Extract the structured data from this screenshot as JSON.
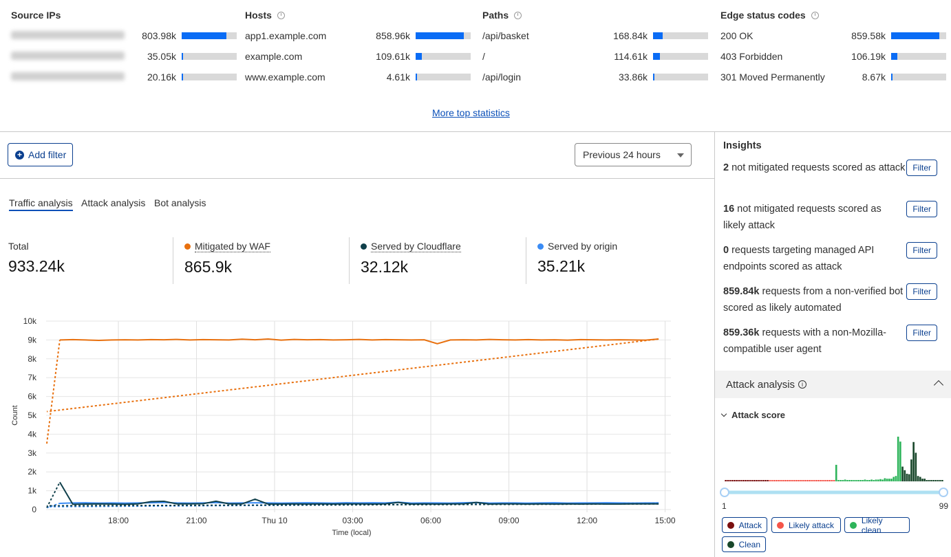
{
  "top_stats": {
    "more_link": "More top statistics",
    "columns": [
      {
        "title": "Source IPs",
        "has_icon": false,
        "rows": [
          {
            "label": "",
            "value": "803.98k",
            "pct": 81
          },
          {
            "label": "",
            "value": "35.05k",
            "pct": 3
          },
          {
            "label": "",
            "value": "20.16k",
            "pct": 2
          }
        ]
      },
      {
        "title": "Hosts",
        "has_icon": true,
        "rows": [
          {
            "label": "app1.example.com",
            "value": "858.96k",
            "pct": 88
          },
          {
            "label": "example.com",
            "value": "109.61k",
            "pct": 11
          },
          {
            "label": "www.example.com",
            "value": "4.61k",
            "pct": 1
          }
        ]
      },
      {
        "title": "Paths",
        "has_icon": true,
        "rows": [
          {
            "label": "/api/basket",
            "value": "168.84k",
            "pct": 17
          },
          {
            "label": "/",
            "value": "114.61k",
            "pct": 12
          },
          {
            "label": "/api/login",
            "value": "33.86k",
            "pct": 3
          }
        ]
      },
      {
        "title": "Edge status codes",
        "has_icon": true,
        "rows": [
          {
            "label": "200 OK",
            "value": "859.58k",
            "pct": 88
          },
          {
            "label": "403 Forbidden",
            "value": "106.19k",
            "pct": 11
          },
          {
            "label": "301 Moved Permanently",
            "value": "8.67k",
            "pct": 1
          }
        ]
      }
    ]
  },
  "toolbar": {
    "add_filter": "Add filter",
    "time_range": "Previous 24 hours"
  },
  "tabs": [
    {
      "label": "Traffic analysis",
      "active": true
    },
    {
      "label": "Attack analysis"
    },
    {
      "label": "Bot analysis"
    }
  ],
  "summary": [
    {
      "label": "Total",
      "value": "933.24k",
      "color": ""
    },
    {
      "label": "Mitigated by WAF",
      "value": "865.9k",
      "color": "#e8700e"
    },
    {
      "label": "Served by Cloudflare",
      "value": "32.12k",
      "color": "#0f3f4a"
    },
    {
      "label": "Served by origin",
      "value": "35.21k",
      "color": "#3b8cf5"
    }
  ],
  "chart_data": {
    "type": "line",
    "xlabel": "Time (local)",
    "ylabel": "Count",
    "ylim": [
      0,
      10000
    ],
    "yticks": [
      "0",
      "1k",
      "2k",
      "3k",
      "4k",
      "5k",
      "6k",
      "7k",
      "8k",
      "9k",
      "10k"
    ],
    "xticks": [
      {
        "t": "18:00",
        "label": "18:00"
      },
      {
        "t": "21:00",
        "label": "21:00"
      },
      {
        "t": "00:00",
        "label": "Thu 10"
      },
      {
        "t": "03:00",
        "label": "03:00"
      },
      {
        "t": "06:00",
        "label": "06:00"
      },
      {
        "t": "09:00",
        "label": "09:00"
      },
      {
        "t": "12:00",
        "label": "12:00"
      },
      {
        "t": "15:00",
        "label": "15:00"
      }
    ],
    "grid": true,
    "x": [
      "15:15",
      "15:45",
      "16:15",
      "16:45",
      "17:15",
      "17:45",
      "18:15",
      "18:45",
      "19:15",
      "19:45",
      "20:15",
      "20:45",
      "21:15",
      "21:45",
      "22:15",
      "22:45",
      "23:15",
      "23:45",
      "00:15",
      "00:45",
      "01:15",
      "01:45",
      "02:15",
      "02:45",
      "03:15",
      "03:45",
      "04:15",
      "04:45",
      "05:15",
      "05:45",
      "06:15",
      "06:45",
      "07:15",
      "07:45",
      "08:15",
      "08:45",
      "09:15",
      "09:45",
      "10:15",
      "10:45",
      "11:15",
      "11:45",
      "12:15",
      "12:45",
      "13:15",
      "13:45",
      "14:15",
      "14:45",
      "15:15"
    ],
    "series": [
      {
        "name": "Mitigated by WAF",
        "color": "#e8700e",
        "values": [
          3500,
          9000,
          9020,
          9000,
          8980,
          9000,
          9010,
          9000,
          9020,
          9010,
          9030,
          9000,
          9020,
          9010,
          9000,
          9040,
          9010,
          9050,
          8990,
          9030,
          9010,
          9020,
          9000,
          9010,
          9030,
          9000,
          9020,
          9010,
          9000,
          9010,
          8800,
          9000,
          9010,
          9000,
          9030,
          9010,
          9000,
          9020,
          9000,
          9010,
          8990,
          9020,
          9010,
          9000,
          9010,
          9000,
          8990,
          9050,
          5200
        ]
      },
      {
        "name": "Served by Cloudflare",
        "color": "#0f3f4a",
        "values": [
          100,
          1450,
          280,
          290,
          300,
          290,
          280,
          300,
          420,
          440,
          300,
          300,
          310,
          440,
          300,
          300,
          550,
          290,
          290,
          300,
          290,
          300,
          290,
          300,
          300,
          290,
          300,
          380,
          290,
          300,
          290,
          300,
          300,
          380,
          290,
          300,
          300,
          290,
          300,
          290,
          300,
          290,
          300,
          290,
          290,
          300,
          300,
          300,
          200
        ]
      },
      {
        "name": "Served by origin",
        "color": "#3b8cf5",
        "values": [
          100,
          330,
          350,
          360,
          340,
          350,
          340,
          350,
          360,
          380,
          350,
          340,
          350,
          370,
          340,
          350,
          360,
          350,
          340,
          350,
          360,
          350,
          340,
          360,
          350,
          360,
          350,
          390,
          340,
          350,
          350,
          340,
          360,
          380,
          340,
          350,
          350,
          340,
          350,
          360,
          340,
          350,
          350,
          360,
          350,
          340,
          350,
          350,
          150
        ]
      }
    ]
  },
  "insights": {
    "title": "Insights",
    "filter_label": "Filter",
    "items": [
      {
        "bold": "2",
        "text": " not mitigated requests scored as attack"
      },
      {
        "bold": "16",
        "text": " not mitigated requests scored as likely attack"
      },
      {
        "bold": "0",
        "text": " requests targeting managed API endpoints scored as attack"
      },
      {
        "bold": "859.84k",
        "text": " requests from a non-verified bot scored as likely automated"
      },
      {
        "bold": "859.36k",
        "text": " requests with a non-Mozilla-compatible user agent"
      }
    ]
  },
  "attack_analysis": {
    "title": "Attack analysis",
    "score_title": "Attack score",
    "range_min": "1",
    "range_max": "99",
    "histogram": {
      "type": "bar",
      "x_range": [
        1,
        99
      ],
      "values": [
        2,
        2,
        2,
        2,
        2,
        2,
        2,
        2,
        2,
        2,
        2,
        2,
        2,
        2,
        2,
        2,
        2,
        2,
        2,
        2,
        2,
        2,
        2,
        2,
        2,
        2,
        2,
        2,
        2,
        2,
        2,
        2,
        2,
        3,
        2,
        2,
        2,
        2,
        2,
        2,
        2,
        2,
        2,
        2,
        2,
        2,
        2,
        2,
        2,
        2,
        37,
        3,
        3,
        3,
        4,
        3,
        3,
        3,
        3,
        3,
        3,
        3,
        3,
        4,
        3,
        3,
        4,
        3,
        4,
        4,
        5,
        4,
        7,
        6,
        6,
        6,
        10,
        12,
        100,
        89,
        33,
        25,
        17,
        16,
        49,
        88,
        64,
        12,
        10,
        6,
        6,
        3,
        3,
        3,
        3,
        3,
        3,
        3,
        2
      ]
    },
    "legend": [
      {
        "label": "Attack",
        "color": "#7a0f0f",
        "from": 1,
        "to": 20
      },
      {
        "label": "Likely attack",
        "color": "#f4554a",
        "from": 21,
        "to": 50
      },
      {
        "label": "Likely clean",
        "color": "#2db45a",
        "from": 51,
        "to": 80
      },
      {
        "label": "Clean",
        "color": "#18472a",
        "from": 81,
        "to": 99
      }
    ]
  }
}
